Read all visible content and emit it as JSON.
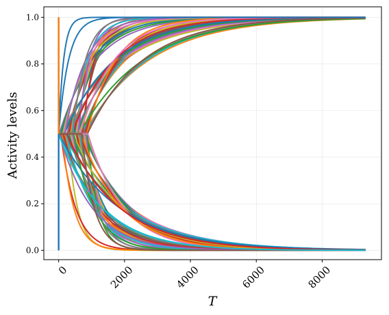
{
  "chart_data": {
    "type": "line",
    "title": "",
    "xlabel": "T",
    "ylabel": "Activity levels",
    "xlim": [
      -450,
      9800
    ],
    "ylim": [
      -0.04,
      1.045
    ],
    "x_ticks": [
      0,
      2000,
      4000,
      6000,
      8000
    ],
    "x_tick_labels": [
      "0",
      "2000",
      "4000",
      "6000",
      "8000"
    ],
    "y_ticks": [
      0.0,
      0.2,
      0.4,
      0.6,
      0.8,
      1.0
    ],
    "y_tick_labels": [
      "0.0",
      "0.2",
      "0.4",
      "0.6",
      "0.8",
      "1.0"
    ],
    "grid": true,
    "legend": "none",
    "x_end": 9300,
    "palette": [
      "#1f77b4",
      "#ff7f0e",
      "#2ca02c",
      "#d62728",
      "#9467bd",
      "#8c564b",
      "#e377c2",
      "#7f7f7f",
      "#bcbd22",
      "#17becf"
    ],
    "series_groups": [
      {
        "direction": "up",
        "tau_range": [
          300,
          2000
        ],
        "split_range": [
          0,
          900
        ],
        "count": 48
      },
      {
        "direction": "down",
        "tau_range": [
          300,
          1900
        ],
        "split_range": [
          0,
          900
        ],
        "count": 48
      }
    ],
    "extreme_series": [
      {
        "direction": "up",
        "tau": 150,
        "split": 0,
        "color": "#1f77b4"
      },
      {
        "direction": "down",
        "tau": 1300,
        "split": 0,
        "color": "#17becf"
      }
    ],
    "vertical_spikes": [
      {
        "x": 0,
        "y_from": 0.0,
        "y_to": 1.0,
        "color": "#1f77b4"
      },
      {
        "x": 0,
        "y_from": 0.5,
        "y_to": 1.0,
        "color": "#ff7f0e"
      }
    ]
  }
}
